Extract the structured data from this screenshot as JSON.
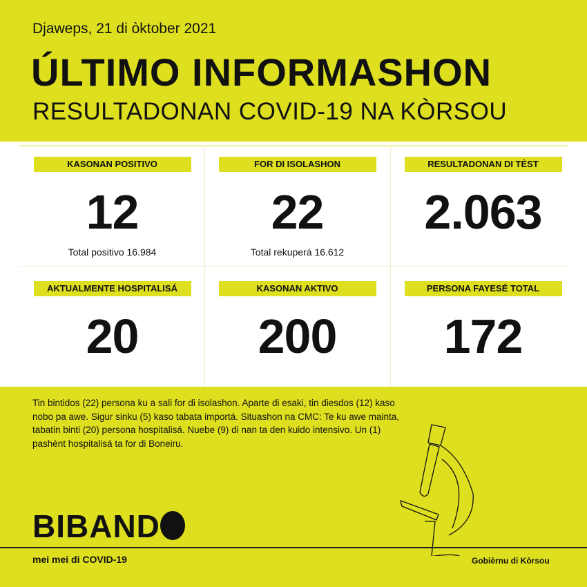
{
  "header": {
    "date": "Djaweps, 21 di òktober 2021",
    "title": "ÚLTIMO INFORMASHON",
    "subtitle": "RESULTADONAN COVID-19 NA KÒRSOU"
  },
  "stats": [
    {
      "label": "KASONAN POSITIVO",
      "value": "12",
      "sub": "Total positivo 16.984"
    },
    {
      "label": "FOR DI ISOLASHON",
      "value": "22",
      "sub": "Total rekuperá 16.612"
    },
    {
      "label": "RESULTADONAN DI TÈST",
      "value": "2.063",
      "sub": ""
    },
    {
      "label": "AKTUALMENTE HOSPITALISÁ",
      "value": "20",
      "sub": ""
    },
    {
      "label": "KASONAN AKTIVO",
      "value": "200",
      "sub": ""
    },
    {
      "label": "PERSONA FAYESÉ TOTAL",
      "value": "172",
      "sub": ""
    }
  ],
  "body_text": "Tin bintidos (22) persona ku a sali for di isolashon. Aparte di esaki, tin diesdos (12) kaso nobo pa awe. Sigur sinku (5) kaso tabata importá. Situashon na CMC: Te ku awe mainta, tabatin binti (20) persona hospitalisá. Nuebe (9) di nan ta den kuido intensivo. Un (1) pashènt hospitalisá ta for di Boneiru.",
  "footer": {
    "logo": "BIBAND",
    "tagline": "mei mei di COVID-19",
    "government": "Gobièrnu di Kòrsou"
  },
  "colors": {
    "accent": "#dedf1f",
    "panel": "#ffffff",
    "text": "#111111"
  },
  "icons": [
    "microscope-icon"
  ]
}
